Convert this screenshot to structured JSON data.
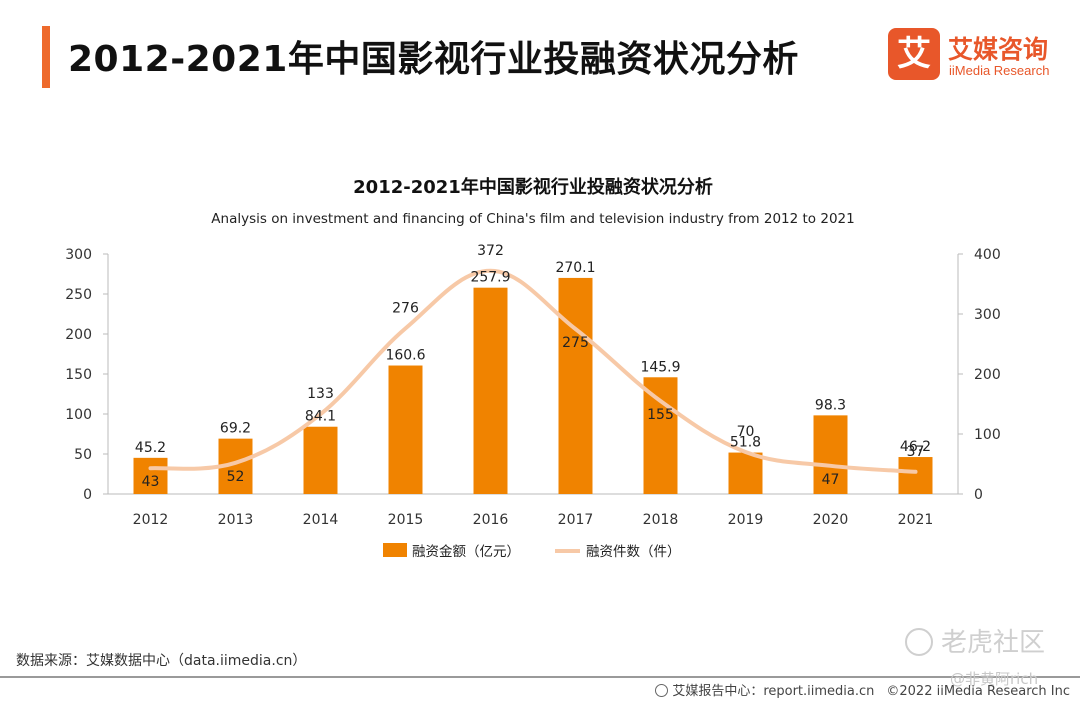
{
  "header": {
    "title": "2012-2021年中国影视行业投融资状况分析",
    "accent_color": "#ee6a2c"
  },
  "logo": {
    "mark": "艾",
    "name_cn": "艾媒咨询",
    "name_en": "iiMedia Research"
  },
  "chart_data": {
    "type": "bar",
    "title": "2012-2021年中国影视行业投融资状况分析",
    "subtitle": "Analysis on investment and financing of China's film and television industry from 2012 to 2021",
    "categories": [
      "2012",
      "2013",
      "2014",
      "2015",
      "2016",
      "2017",
      "2018",
      "2019",
      "2020",
      "2021"
    ],
    "series": [
      {
        "name": "融资金额（亿元）",
        "type": "bar",
        "axis": "left",
        "color": "#f08300",
        "values": [
          45.2,
          69.2,
          84.1,
          160.6,
          257.9,
          270.1,
          145.9,
          51.8,
          98.3,
          46.2
        ],
        "labels": [
          "45.2",
          "69.2",
          "84.1",
          "160.6",
          "257.9",
          "270.1",
          "145.9",
          "51.8",
          "98.3",
          "46.2"
        ]
      },
      {
        "name": "融资件数（件）",
        "type": "line",
        "axis": "right",
        "color": "#f7c9a7",
        "values": [
          43,
          52,
          133,
          276,
          372,
          275,
          155,
          70,
          47,
          37
        ],
        "labels": [
          "43",
          "52",
          "133",
          "276",
          "372",
          "275",
          "155",
          "70",
          "47",
          "37"
        ]
      }
    ],
    "y_left": {
      "min": 0,
      "max": 300,
      "ticks": [
        "0",
        "50",
        "100",
        "150",
        "200",
        "250",
        "300"
      ]
    },
    "y_right": {
      "min": 0,
      "max": 400,
      "ticks": [
        "0",
        "100",
        "200",
        "300",
        "400"
      ]
    },
    "legend_position": "bottom-center",
    "grid": false
  },
  "footer": {
    "source": "数据来源：艾媒数据中心（data.iimedia.cn）",
    "report": "艾媒报告中心：report.iimedia.cn",
    "copyright": "©2022  iiMedia Research  Inc"
  },
  "watermark": {
    "main": "老虎社区",
    "sub": "@非黄阿rich"
  }
}
